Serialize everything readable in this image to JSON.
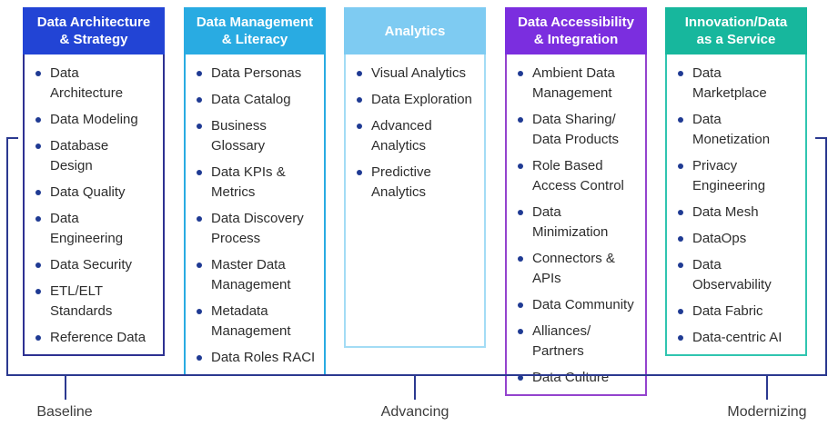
{
  "diagram": {
    "bullet_color": "#1F3A93",
    "text_color": "#2D2D2D",
    "bracket_color": "#2B3990",
    "stage_label_color": "#3C3C3C",
    "columns": [
      {
        "id": "data-architecture-strategy",
        "title": "Data Architecture\n& Strategy",
        "header_bg": "#2244D5",
        "border_color": "#2E3192",
        "items": [
          "Data\nArchitecture",
          "Data Modeling",
          "Database\nDesign",
          "Data Quality",
          "Data\nEngineering",
          "Data Security",
          "ETL/ELT\nStandards",
          "Reference Data"
        ]
      },
      {
        "id": "data-management-literacy",
        "title": "Data Management\n& Literacy",
        "header_bg": "#29ABE2",
        "border_color": "#29ABE2",
        "items": [
          "Data Personas",
          "Data Catalog",
          "Business\nGlossary",
          "Data KPIs &\nMetrics",
          "Data Discovery\nProcess",
          "Master Data\nManagement",
          "Metadata\nManagement",
          "Data Roles RACI"
        ]
      },
      {
        "id": "analytics",
        "title": "Analytics",
        "header_bg": "#7ECBF2",
        "border_color": "#A3DCF5",
        "items": [
          "Visual Analytics",
          "Data Exploration",
          "Advanced\nAnalytics",
          "Predictive\nAnalytics"
        ]
      },
      {
        "id": "data-accessibility-integration",
        "title": "Data Accessibility\n& Integration",
        "header_bg": "#7B2EDF",
        "border_color": "#9443CE",
        "items": [
          "Ambient Data\nManagement",
          "Data Sharing/\nData Products",
          "Role Based\nAccess Control",
          "Data\nMinimization",
          "Connectors &\nAPIs",
          "Data Community",
          "Alliances/\nPartners",
          "Data Culture"
        ]
      },
      {
        "id": "innovation-data-as-a-service",
        "title": "Innovation/Data\nas a Service",
        "header_bg": "#17B79D",
        "border_color": "#30C5B0",
        "items": [
          "Data\nMarketplace",
          "Data\nMonetization",
          "Privacy\nEngineering",
          "Data Mesh",
          "DataOps",
          "Data\nObservability",
          "Data Fabric",
          "Data-centric AI"
        ]
      }
    ],
    "stages": [
      {
        "label": "Baseline"
      },
      {
        "label": "Advancing"
      },
      {
        "label": "Modernizing"
      }
    ]
  }
}
